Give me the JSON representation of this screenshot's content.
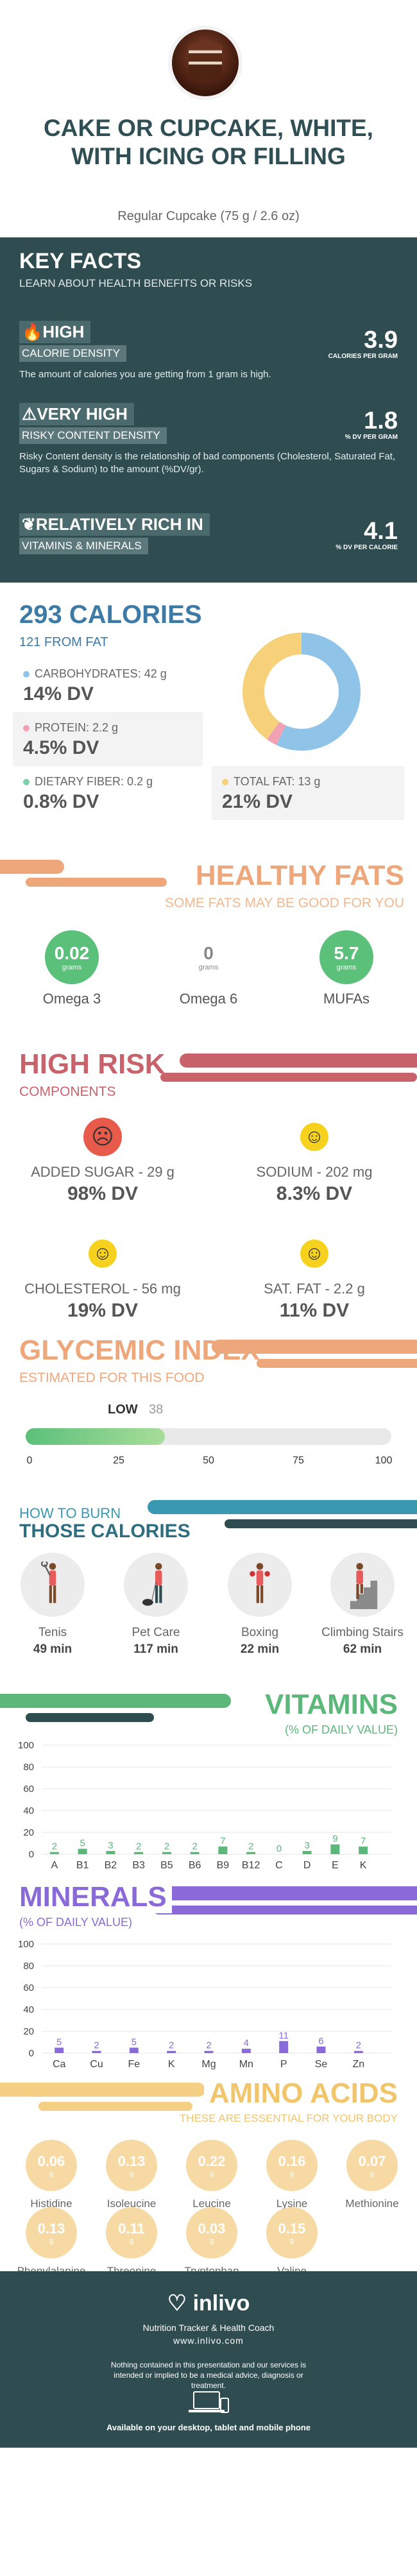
{
  "header": {
    "title": "CAKE OR CUPCAKE, WHITE, WITH ICING OR FILLING",
    "serving": "Regular Cupcake (75 g / 2.6 oz)"
  },
  "key_facts": {
    "heading": "KEY FACTS",
    "subheading": "LEARN ABOUT HEALTH BENEFITS OR RISKS",
    "calorie": {
      "level": "HIGH",
      "label": "CALORIE DENSITY",
      "value": "3.9",
      "unit": "CALORIES PER GRAM",
      "desc": "The amount of calories you are getting from 1 gram is high."
    },
    "risky": {
      "level": "VERY HIGH",
      "label": "RISKY CONTENT DENSITY",
      "value": "1.8",
      "unit": "% DV PER GRAM",
      "desc": "Risky Content density is the relationship of bad components (Cholesterol, Saturated Fat, Sugars & Sodium) to the amount (%DV/gr)."
    },
    "vitamins": {
      "level": "RELATIVELY RICH  IN",
      "label": "VITAMINS & MINERALS",
      "value": "4.1",
      "unit": "% DV PER CALORIE"
    }
  },
  "calories": {
    "title": "293 CALORIES",
    "from_fat": "121 FROM FAT",
    "carbs": {
      "label": "CARBOHYDRATES: 42 g",
      "dv": "14% DV",
      "color": "#8fc3e8"
    },
    "protein": {
      "label": "PROTEIN: 2.2 g",
      "dv": "4.5% DV",
      "color": "#f2a1b3"
    },
    "fiber": {
      "label": "DIETARY FIBER: 0.2 g",
      "dv": "0.8% DV",
      "color": "#7ccfa6"
    },
    "fat": {
      "label": "TOTAL FAT: 13 g",
      "dv": "21% DV",
      "color": "#f7d17a"
    },
    "donut": [
      {
        "name": "carbs",
        "value": 57,
        "color": "#8fc3e8"
      },
      {
        "name": "protein",
        "value": 3,
        "color": "#f2a1b3"
      },
      {
        "name": "fat",
        "value": 40,
        "color": "#f7d17a"
      }
    ]
  },
  "fats": {
    "title": "HEALTHY FATS",
    "subtitle": "SOME FATS MAY BE GOOD FOR YOU",
    "unit": "grams",
    "items": [
      {
        "label": "Omega 3",
        "value": "0.02",
        "color": "#5bc07a"
      },
      {
        "label": "Omega 6",
        "value": "0",
        "color": "#f0f0f0"
      },
      {
        "label": "MUFAs",
        "value": "5.7",
        "color": "#5bc07a"
      }
    ]
  },
  "risk": {
    "title": "HIGH RISK",
    "subtitle": "COMPONENTS",
    "items": [
      {
        "label": "ADDED SUGAR - 29 g",
        "dv": "98% DV",
        "face": "sad"
      },
      {
        "label": "SODIUM - 202 mg",
        "dv": "8.3% DV",
        "face": "happy"
      },
      {
        "label": "CHOLESTEROL - 56 mg",
        "dv": "19% DV",
        "face": "happy"
      },
      {
        "label": "SAT. FAT - 2.2 g",
        "dv": "11% DV",
        "face": "happy"
      }
    ]
  },
  "glycemic": {
    "title": "GLYCEMIC INDEX",
    "subtitle": "ESTIMATED FOR THIS FOOD",
    "level": "LOW",
    "value": 38,
    "value_label": "38",
    "ticks": [
      "0",
      "25",
      "50",
      "75",
      "100"
    ]
  },
  "burn": {
    "title1": "HOW TO BURN",
    "title2": "THOSE CALORIES",
    "items": [
      {
        "label": "Tenis",
        "time": "49 min",
        "icon": "tennis-icon"
      },
      {
        "label": "Pet Care",
        "time": "117 min",
        "icon": "pet-care-icon"
      },
      {
        "label": "Boxing",
        "time": "22 min",
        "icon": "boxing-icon"
      },
      {
        "label": "Climbing Stairs",
        "time": "62 min",
        "icon": "stairs-icon"
      }
    ]
  },
  "vitamins": {
    "title": "VITAMINS",
    "subtitle": "(% OF DAILY VALUE)",
    "chart_data": {
      "type": "bar",
      "categories": [
        "A",
        "B1",
        "B2",
        "B3",
        "B5",
        "B6",
        "B9",
        "B12",
        "C",
        "D",
        "E",
        "K"
      ],
      "values": [
        2,
        5,
        3,
        2,
        2,
        2,
        7,
        2,
        0,
        3,
        9,
        7
      ],
      "ylim": [
        0,
        100
      ],
      "yticks": [
        "0",
        "20",
        "40",
        "60",
        "80",
        "100"
      ],
      "color": "#5bb77a"
    }
  },
  "minerals": {
    "title": "MINERALS",
    "subtitle": "(% OF DAILY VALUE)",
    "chart_data": {
      "type": "bar",
      "categories": [
        "Ca",
        "Cu",
        "Fe",
        "K",
        "Mg",
        "Mn",
        "P",
        "Se",
        "Zn"
      ],
      "values": [
        5,
        2,
        5,
        2,
        2,
        4,
        11,
        6,
        2
      ],
      "ylim": [
        0,
        100
      ],
      "yticks": [
        "0",
        "20",
        "40",
        "60",
        "80",
        "100"
      ],
      "color": "#8a6ad8"
    }
  },
  "amino": {
    "title": "AMINO ACIDS",
    "subtitle": "THESE ARE ESSENTIAL FOR YOUR BODY",
    "unit": "g",
    "items": [
      {
        "label": "Histidine",
        "value": "0.06"
      },
      {
        "label": "Isoleucine",
        "value": "0.13"
      },
      {
        "label": "Leucine",
        "value": "0.22"
      },
      {
        "label": "Lysine",
        "value": "0.16"
      },
      {
        "label": "Methionine",
        "value": "0.07"
      },
      {
        "label": "Phenylalanine",
        "value": "0.13"
      },
      {
        "label": "Threonine",
        "value": "0.11"
      },
      {
        "label": "Tryptophan",
        "value": "0.03"
      },
      {
        "label": "Valine",
        "value": "0.15"
      }
    ]
  },
  "footer": {
    "brand": "inlivo",
    "tagline": "Nutrition Tracker & Health Coach",
    "url": "www.inlivo.com",
    "disclaimer": "Nothing contained in this presentation and our services is intended or implied to be a medical advice, diagnosis or treatment.",
    "available": "Available on your desktop, tablet and mobile phone"
  }
}
